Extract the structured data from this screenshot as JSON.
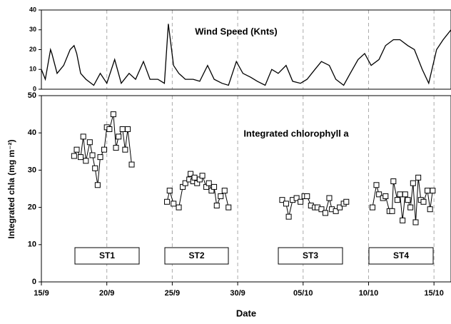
{
  "chart_data": [
    {
      "type": "line",
      "title": "Wind Speed (Knts)",
      "x": [
        0,
        0.3,
        0.7,
        0.8,
        1.2,
        1.7,
        2.2,
        2.5,
        2.7,
        3.0,
        3.4,
        4.0,
        4.5,
        5.0,
        5.6,
        6.1,
        6.7,
        7.2,
        7.8,
        8.3,
        8.9,
        9.4,
        9.7,
        10.1,
        10.5,
        11.0,
        11.6,
        12.1,
        12.7,
        13.2,
        13.8,
        14.3,
        14.9,
        15.4,
        16.0,
        16.5,
        17.1,
        17.6,
        18.1,
        18.7,
        19.2,
        19.8,
        20.3,
        20.9,
        21.4,
        22.0,
        22.5,
        23.1,
        23.6,
        24.2,
        24.7,
        25.2,
        25.8,
        26.3,
        26.9,
        27.4,
        28.0,
        28.5,
        29.1,
        29.6,
        30.2,
        30.7,
        31.3
      ],
      "values": [
        10,
        5,
        20,
        18,
        8,
        12,
        20,
        22,
        18,
        8,
        5,
        2,
        8,
        3,
        15,
        3,
        8,
        5,
        14,
        5,
        5,
        3,
        33,
        12,
        8,
        5,
        5,
        4,
        12,
        5,
        3,
        2,
        14,
        8,
        6,
        4,
        2,
        10,
        8,
        12,
        4,
        3,
        5,
        10,
        14,
        12,
        5,
        2,
        8,
        15,
        18,
        12,
        15,
        22,
        25,
        25,
        22,
        20,
        10,
        3,
        20,
        25,
        30
      ],
      "color": "#000000",
      "xlim": [
        0,
        31.3
      ],
      "ylim": [
        0,
        40
      ],
      "yticks": [
        0,
        10,
        20,
        30,
        40
      ],
      "grid": true
    },
    {
      "type": "line",
      "title": "Integrated chlorophyll a",
      "xlabel": "Date",
      "ylabel": "Integrated chla (mg m⁻²)",
      "x": [
        2.5,
        2.7,
        3.0,
        3.2,
        3.4,
        3.7,
        3.9,
        4.1,
        4.3,
        4.5,
        4.8,
        5.0,
        5.2,
        5.5,
        5.7,
        5.9,
        6.2,
        6.4,
        6.6,
        6.9,
        null,
        9.6,
        9.8,
        10.1,
        10.5,
        10.8,
        11.0,
        11.3,
        11.4,
        11.6,
        11.7,
        11.9,
        12.1,
        12.3,
        12.6,
        12.8,
        13.0,
        13.2,
        13.4,
        13.7,
        14.0,
        14.3,
        null,
        18.4,
        18.7,
        18.9,
        19.2,
        19.5,
        19.8,
        20.1,
        20.3,
        20.6,
        20.9,
        21.1,
        21.4,
        21.7,
        22.0,
        22.2,
        22.5,
        22.8,
        23.1,
        23.3,
        null,
        25.3,
        25.6,
        25.8,
        26.1,
        26.3,
        26.6,
        26.8,
        26.9,
        27.2,
        27.4,
        27.6,
        27.8,
        28.0,
        28.2,
        28.4,
        28.6,
        28.8,
        29.0,
        29.2,
        29.5,
        29.7,
        29.9
      ],
      "values": [
        33.8,
        35.5,
        33.5,
        39,
        32.5,
        37.5,
        34,
        30.5,
        26,
        33.5,
        35.5,
        41.5,
        41,
        45,
        36,
        39,
        41,
        35.5,
        41,
        31.5,
        null,
        21.5,
        24.5,
        21,
        20,
        25.5,
        26.5,
        27.5,
        29,
        27,
        28,
        26.5,
        27.5,
        28.5,
        25.5,
        26.5,
        24.5,
        25.5,
        20.5,
        23,
        24.5,
        20,
        null,
        22,
        21,
        17.5,
        22,
        22.5,
        21.5,
        23,
        23,
        20.5,
        20,
        20,
        19.5,
        18.5,
        22.5,
        19.5,
        19,
        20,
        21,
        21.5,
        null,
        20,
        26,
        23.5,
        22.5,
        23,
        19,
        19,
        27,
        22,
        23.5,
        16.5,
        23.5,
        22,
        20,
        26.5,
        16,
        28,
        22,
        21.5,
        24.5,
        19.5,
        24.5
      ],
      "color": "#000000",
      "xlim": [
        0,
        31.3
      ],
      "ylim": [
        0,
        50
      ],
      "yticks": [
        0,
        10,
        20,
        30,
        40,
        50
      ],
      "xticks": [
        {
          "value": 0,
          "label": "15/9"
        },
        {
          "value": 5,
          "label": "20/9"
        },
        {
          "value": 10,
          "label": "25/9"
        },
        {
          "value": 15,
          "label": "30/9"
        },
        {
          "value": 20,
          "label": "05/10"
        },
        {
          "value": 25,
          "label": "10/10"
        },
        {
          "value": 30,
          "label": "15/10"
        }
      ],
      "grid": true,
      "annotations": [
        "ST1",
        "ST2",
        "ST3",
        "ST4"
      ]
    }
  ]
}
